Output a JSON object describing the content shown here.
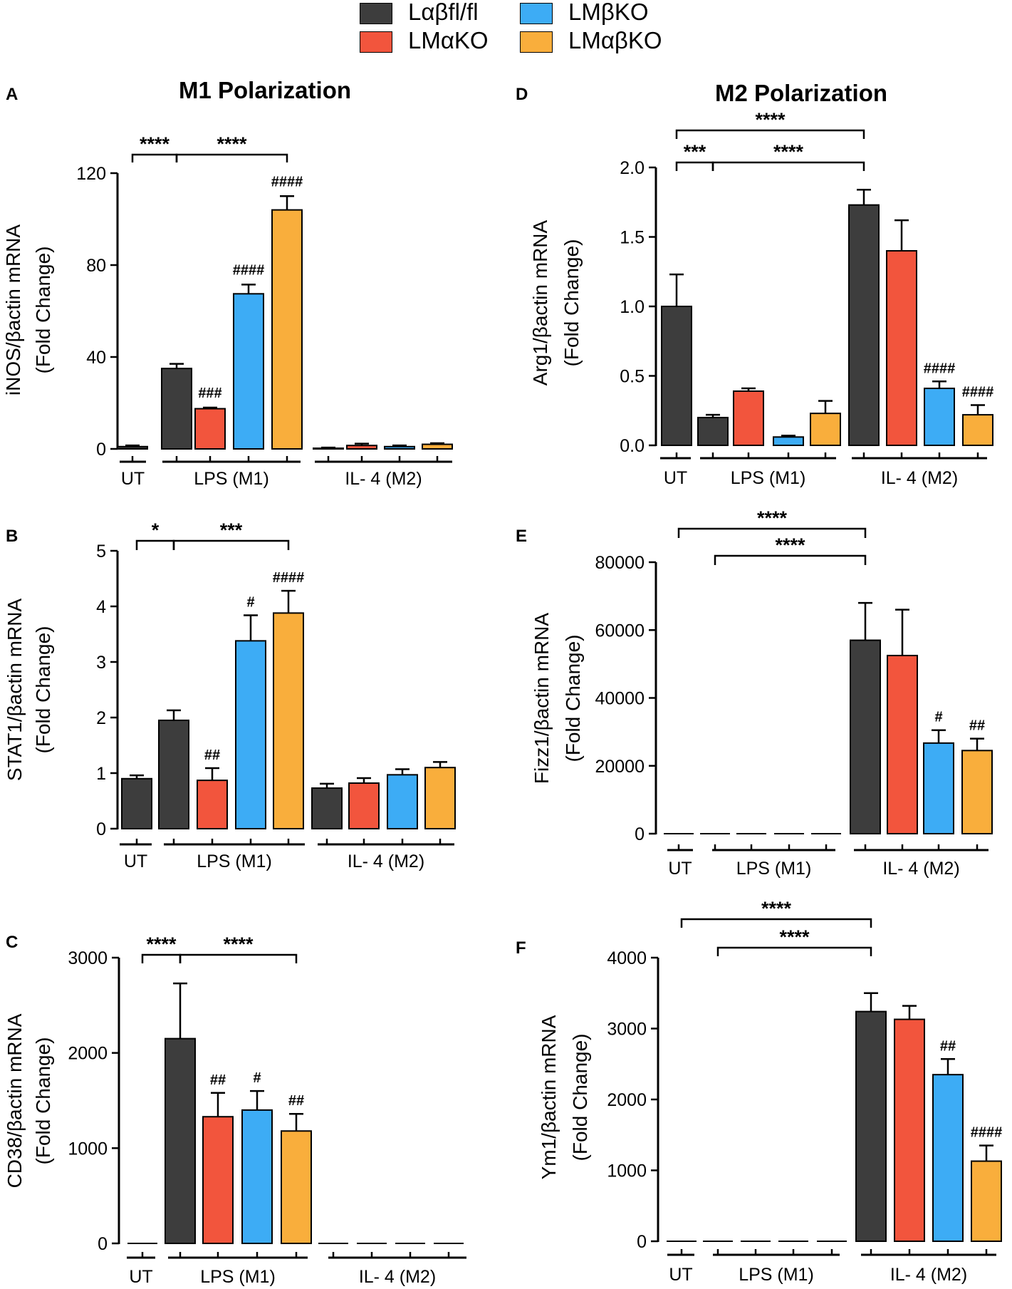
{
  "legend": [
    {
      "label": "Lαβfl/fl",
      "color": "#3d3d3d"
    },
    {
      "label": "LMαKO",
      "color": "#f2553d"
    },
    {
      "label": "LMβKO",
      "color": "#3dacf5"
    },
    {
      "label": "LMαβKO",
      "color": "#f9ae3c"
    }
  ],
  "column_titles": {
    "left": "M1 Polarization",
    "right": "M2 Polarization"
  },
  "chart_data": [
    {
      "id": "A",
      "type": "bar",
      "panel_letter": "A",
      "ylabel_line1": "iNOS/βactin mRNA",
      "ylabel_line2": "(Fold Change)",
      "ylim": [
        0,
        120
      ],
      "yticks": [
        "0",
        "40",
        "80",
        "120"
      ],
      "groups": [
        "UT",
        "LPS (M1)",
        "IL- 4 (M2)"
      ],
      "values": [
        1,
        35,
        17.5,
        67.5,
        104,
        0.3,
        1.5,
        1,
        2
      ],
      "errors": [
        0.5,
        2,
        0.5,
        4,
        6,
        0.3,
        0.8,
        0.5,
        0.5
      ],
      "colors": [
        0,
        0,
        1,
        2,
        3,
        0,
        1,
        2,
        3
      ],
      "bar_annotations": [
        "",
        "",
        "###",
        "####",
        "####",
        "",
        "",
        "",
        ""
      ],
      "brackets": [
        {
          "from": 0,
          "to": 1,
          "label": "****"
        },
        {
          "from": 1,
          "to": 4,
          "label": "****"
        }
      ]
    },
    {
      "id": "B",
      "type": "bar",
      "panel_letter": "B",
      "ylabel_line1": "STAT1/βactin mRNA",
      "ylabel_line2": "(Fold Change)",
      "ylim": [
        0,
        5
      ],
      "yticks": [
        "0",
        "1",
        "2",
        "3",
        "4",
        "5"
      ],
      "groups": [
        "UT",
        "LPS (M1)",
        "IL- 4 (M2)"
      ],
      "values": [
        0.9,
        1.95,
        0.87,
        3.38,
        3.88,
        0.73,
        0.82,
        0.97,
        1.1
      ],
      "errors": [
        0.06,
        0.18,
        0.22,
        0.46,
        0.4,
        0.08,
        0.09,
        0.1,
        0.1
      ],
      "colors": [
        0,
        0,
        1,
        2,
        3,
        0,
        1,
        2,
        3
      ],
      "bar_annotations": [
        "",
        "",
        "##",
        "#",
        "####",
        "",
        "",
        "",
        ""
      ],
      "brackets": [
        {
          "from": 0,
          "to": 1,
          "label": "*"
        },
        {
          "from": 1,
          "to": 4,
          "label": "***"
        }
      ]
    },
    {
      "id": "C",
      "type": "bar",
      "panel_letter": "C",
      "ylabel_line1": "CD38/βactin mRNA",
      "ylabel_line2": "(Fold Change)",
      "ylim": [
        0,
        3000
      ],
      "yticks": [
        "0",
        "1000",
        "2000",
        "3000"
      ],
      "groups": [
        "UT",
        "LPS (M1)",
        "IL- 4 (M2)"
      ],
      "values": [
        0,
        2150,
        1330,
        1400,
        1180,
        0,
        0,
        0,
        0
      ],
      "errors": [
        0,
        580,
        250,
        200,
        180,
        0,
        0,
        0,
        0
      ],
      "colors": [
        0,
        0,
        1,
        2,
        3,
        0,
        1,
        2,
        3
      ],
      "bar_annotations": [
        "",
        "",
        "##",
        "#",
        "##",
        "",
        "",
        "",
        ""
      ],
      "brackets": [
        {
          "from": 0,
          "to": 1,
          "label": "****"
        },
        {
          "from": 1,
          "to": 4,
          "label": "****"
        }
      ]
    },
    {
      "id": "D",
      "type": "bar",
      "panel_letter": "D",
      "ylabel_line1": "Arg1/βactin mRNA",
      "ylabel_line2": "(Fold Change)",
      "ylim": [
        0,
        2
      ],
      "yticks": [
        "0.0",
        "0.5",
        "1.0",
        "1.5",
        "2.0"
      ],
      "groups": [
        "UT",
        "LPS (M1)",
        "IL- 4 (M2)"
      ],
      "values": [
        1.0,
        0.2,
        0.39,
        0.06,
        0.23,
        1.73,
        1.4,
        0.41,
        0.22
      ],
      "errors": [
        0.23,
        0.02,
        0.02,
        0.01,
        0.09,
        0.11,
        0.22,
        0.05,
        0.07
      ],
      "colors": [
        0,
        0,
        1,
        2,
        3,
        0,
        1,
        2,
        3
      ],
      "bar_annotations": [
        "",
        "",
        "",
        "",
        "",
        "",
        "",
        "####",
        "####"
      ],
      "brackets": [
        {
          "from": 0,
          "to": 5,
          "label": "****"
        },
        {
          "from": 0,
          "to": 1,
          "label": "***"
        },
        {
          "from": 1,
          "to": 5,
          "label": "****"
        }
      ]
    },
    {
      "id": "E",
      "type": "bar",
      "panel_letter": "E",
      "ylabel_line1": "Fizz1/βactin mRNA",
      "ylabel_line2": "(Fold Change)",
      "ylim": [
        0,
        80000
      ],
      "yticks": [
        "0",
        "20000",
        "40000",
        "60000",
        "80000"
      ],
      "groups": [
        "UT",
        "LPS (M1)",
        "IL- 4 (M2)"
      ],
      "values": [
        0,
        0,
        0,
        0,
        0,
        57000,
        52500,
        26700,
        24500
      ],
      "errors": [
        0,
        0,
        0,
        0,
        0,
        11000,
        13500,
        3800,
        3500
      ],
      "colors": [
        0,
        0,
        1,
        2,
        3,
        0,
        1,
        2,
        3
      ],
      "bar_annotations": [
        "",
        "",
        "",
        "",
        "",
        "",
        "",
        "#",
        "##"
      ],
      "brackets": [
        {
          "from": 0,
          "to": 5,
          "label": "****"
        },
        {
          "from": 1,
          "to": 5,
          "label": "****"
        }
      ]
    },
    {
      "id": "F",
      "type": "bar",
      "panel_letter": "F",
      "ylabel_line1": "Ym1/βactin mRNA",
      "ylabel_line2": "(Fold Change)",
      "ylim": [
        0,
        4000
      ],
      "yticks": [
        "0",
        "1000",
        "2000",
        "3000",
        "4000"
      ],
      "groups": [
        "UT",
        "LPS (M1)",
        "IL- 4 (M2)"
      ],
      "values": [
        0,
        0,
        0,
        0,
        0,
        3240,
        3130,
        2350,
        1130
      ],
      "errors": [
        0,
        0,
        0,
        0,
        0,
        260,
        190,
        220,
        220
      ],
      "colors": [
        0,
        0,
        1,
        2,
        3,
        0,
        1,
        2,
        3
      ],
      "bar_annotations": [
        "",
        "",
        "",
        "",
        "",
        "",
        "",
        "##",
        "####"
      ],
      "brackets": [
        {
          "from": 0,
          "to": 5,
          "label": "****"
        },
        {
          "from": 1,
          "to": 5,
          "label": "****"
        }
      ]
    }
  ]
}
